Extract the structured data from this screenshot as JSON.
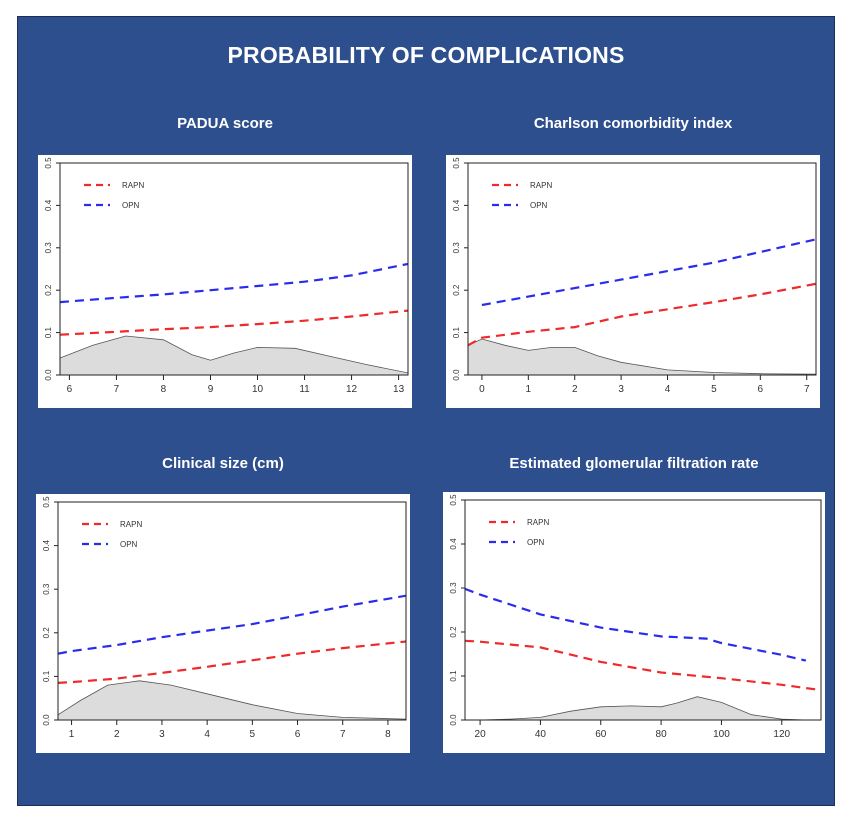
{
  "figure": {
    "title": "PROBABILITY OF COMPLICATIONS"
  },
  "colors": {
    "background": "#2e4f8e",
    "rapn": "#ee2a2a",
    "opn": "#2b2bee",
    "density_fill": "#dcdcdc"
  },
  "chart_data": [
    {
      "type": "line",
      "title": "PADUA score",
      "xlim": [
        5.8,
        13.2
      ],
      "ylim": [
        0,
        0.5
      ],
      "xticks": [
        6,
        7,
        8,
        9,
        10,
        11,
        12,
        13
      ],
      "yticks": [
        0.0,
        0.1,
        0.2,
        0.3,
        0.4,
        0.5
      ],
      "ytick_labels": [
        "0.0",
        "0.1",
        "0.2",
        "0.3",
        "0.4",
        "0.5"
      ],
      "legend_position": "top-left",
      "series": [
        {
          "name": "RAPN",
          "style": "dashed",
          "color": "red",
          "x": [
            5.8,
            7,
            8,
            9,
            10,
            11,
            12,
            13.2
          ],
          "y": [
            0.095,
            0.102,
            0.108,
            0.113,
            0.12,
            0.128,
            0.138,
            0.152
          ]
        },
        {
          "name": "OPN",
          "style": "dashed",
          "color": "blue",
          "x": [
            5.8,
            7,
            8,
            9,
            10,
            11,
            12,
            13.2
          ],
          "y": [
            0.172,
            0.182,
            0.19,
            0.2,
            0.21,
            0.22,
            0.235,
            0.262
          ]
        }
      ],
      "density": {
        "x": [
          5.8,
          6.5,
          7.2,
          8.0,
          8.6,
          9.0,
          9.5,
          10.0,
          10.8,
          11.5,
          12.3,
          13.2
        ],
        "y": [
          0.04,
          0.07,
          0.092,
          0.083,
          0.048,
          0.035,
          0.052,
          0.065,
          0.063,
          0.045,
          0.025,
          0.005
        ]
      }
    },
    {
      "type": "line",
      "title": "Charlson comorbidity index",
      "xlim": [
        -0.3,
        7.2
      ],
      "ylim": [
        0,
        0.5
      ],
      "xticks": [
        0,
        1,
        2,
        3,
        4,
        5,
        6,
        7
      ],
      "yticks": [
        0.0,
        0.1,
        0.2,
        0.3,
        0.4,
        0.5
      ],
      "ytick_labels": [
        "0.0",
        "0.1",
        "0.2",
        "0.3",
        "0.4",
        "0.5"
      ],
      "legend_position": "top-left",
      "series": [
        {
          "name": "RAPN",
          "style": "dashed",
          "color": "red",
          "x": [
            -0.3,
            0,
            1,
            2,
            3,
            4,
            5,
            6,
            7.2
          ],
          "y": [
            0.07,
            0.088,
            0.102,
            0.113,
            0.138,
            0.155,
            0.172,
            0.19,
            0.215
          ]
        },
        {
          "name": "OPN",
          "style": "dashed",
          "color": "blue",
          "x": [
            0,
            1,
            2,
            3,
            4,
            5,
            6,
            7.2
          ],
          "y": [
            0.165,
            0.185,
            0.205,
            0.225,
            0.245,
            0.265,
            0.29,
            0.32
          ]
        }
      ],
      "density": {
        "x": [
          -0.3,
          0,
          0.5,
          1.0,
          1.5,
          2.0,
          2.5,
          3.0,
          4.0,
          5.0,
          6.0,
          7.2
        ],
        "y": [
          0.07,
          0.085,
          0.07,
          0.058,
          0.065,
          0.065,
          0.045,
          0.03,
          0.012,
          0.006,
          0.003,
          0.002
        ]
      }
    },
    {
      "type": "line",
      "title": "Clinical size (cm)",
      "xlim": [
        0.7,
        8.4
      ],
      "ylim": [
        0,
        0.5
      ],
      "xticks": [
        1,
        2,
        3,
        4,
        5,
        6,
        7,
        8
      ],
      "yticks": [
        0.0,
        0.1,
        0.2,
        0.3,
        0.4,
        0.5
      ],
      "ytick_labels": [
        "0.0",
        "0.1",
        "0.2",
        "0.3",
        "0.4",
        "0.5"
      ],
      "legend_position": "top-left",
      "series": [
        {
          "name": "RAPN",
          "style": "dashed",
          "color": "red",
          "x": [
            0.7,
            1,
            2,
            3,
            4,
            5,
            6,
            7,
            8.4
          ],
          "y": [
            0.085,
            0.087,
            0.095,
            0.108,
            0.122,
            0.137,
            0.152,
            0.165,
            0.18
          ]
        },
        {
          "name": "OPN",
          "style": "dashed",
          "color": "blue",
          "x": [
            0.7,
            1,
            2,
            3,
            4,
            5,
            6,
            7,
            8.4
          ],
          "y": [
            0.152,
            0.158,
            0.172,
            0.19,
            0.205,
            0.22,
            0.24,
            0.26,
            0.285
          ]
        }
      ],
      "density": {
        "x": [
          0.7,
          1.2,
          1.8,
          2.5,
          3.2,
          4.0,
          5.0,
          6.0,
          7.0,
          8.4
        ],
        "y": [
          0.012,
          0.045,
          0.08,
          0.09,
          0.08,
          0.06,
          0.035,
          0.015,
          0.006,
          0.002
        ]
      }
    },
    {
      "type": "line",
      "title": "Estimated glomerular filtration rate",
      "xlim": [
        15,
        133
      ],
      "ylim": [
        0,
        0.5
      ],
      "xticks": [
        20,
        40,
        60,
        80,
        100,
        120
      ],
      "yticks": [
        0.0,
        0.1,
        0.2,
        0.3,
        0.4,
        0.5
      ],
      "ytick_labels": [
        "0.0",
        "0.1",
        "0.2",
        "0.3",
        "0.4",
        "0.5"
      ],
      "legend_position": "top-left",
      "series": [
        {
          "name": "RAPN",
          "style": "dashed",
          "color": "red",
          "x": [
            15,
            20,
            40,
            60,
            80,
            100,
            120,
            133
          ],
          "y": [
            0.18,
            0.178,
            0.165,
            0.132,
            0.108,
            0.095,
            0.08,
            0.068
          ]
        },
        {
          "name": "OPN",
          "style": "dashed",
          "color": "blue",
          "x": [
            15,
            20,
            40,
            60,
            80,
            95,
            100,
            120,
            128
          ],
          "y": [
            0.298,
            0.285,
            0.24,
            0.21,
            0.19,
            0.185,
            0.175,
            0.148,
            0.135
          ]
        }
      ],
      "density": {
        "x": [
          20,
          30,
          40,
          50,
          60,
          70,
          80,
          85,
          92,
          100,
          110,
          120,
          128
        ],
        "y": [
          0.0,
          0.002,
          0.006,
          0.02,
          0.03,
          0.032,
          0.03,
          0.038,
          0.053,
          0.04,
          0.012,
          0.002,
          0.0
        ]
      }
    }
  ]
}
